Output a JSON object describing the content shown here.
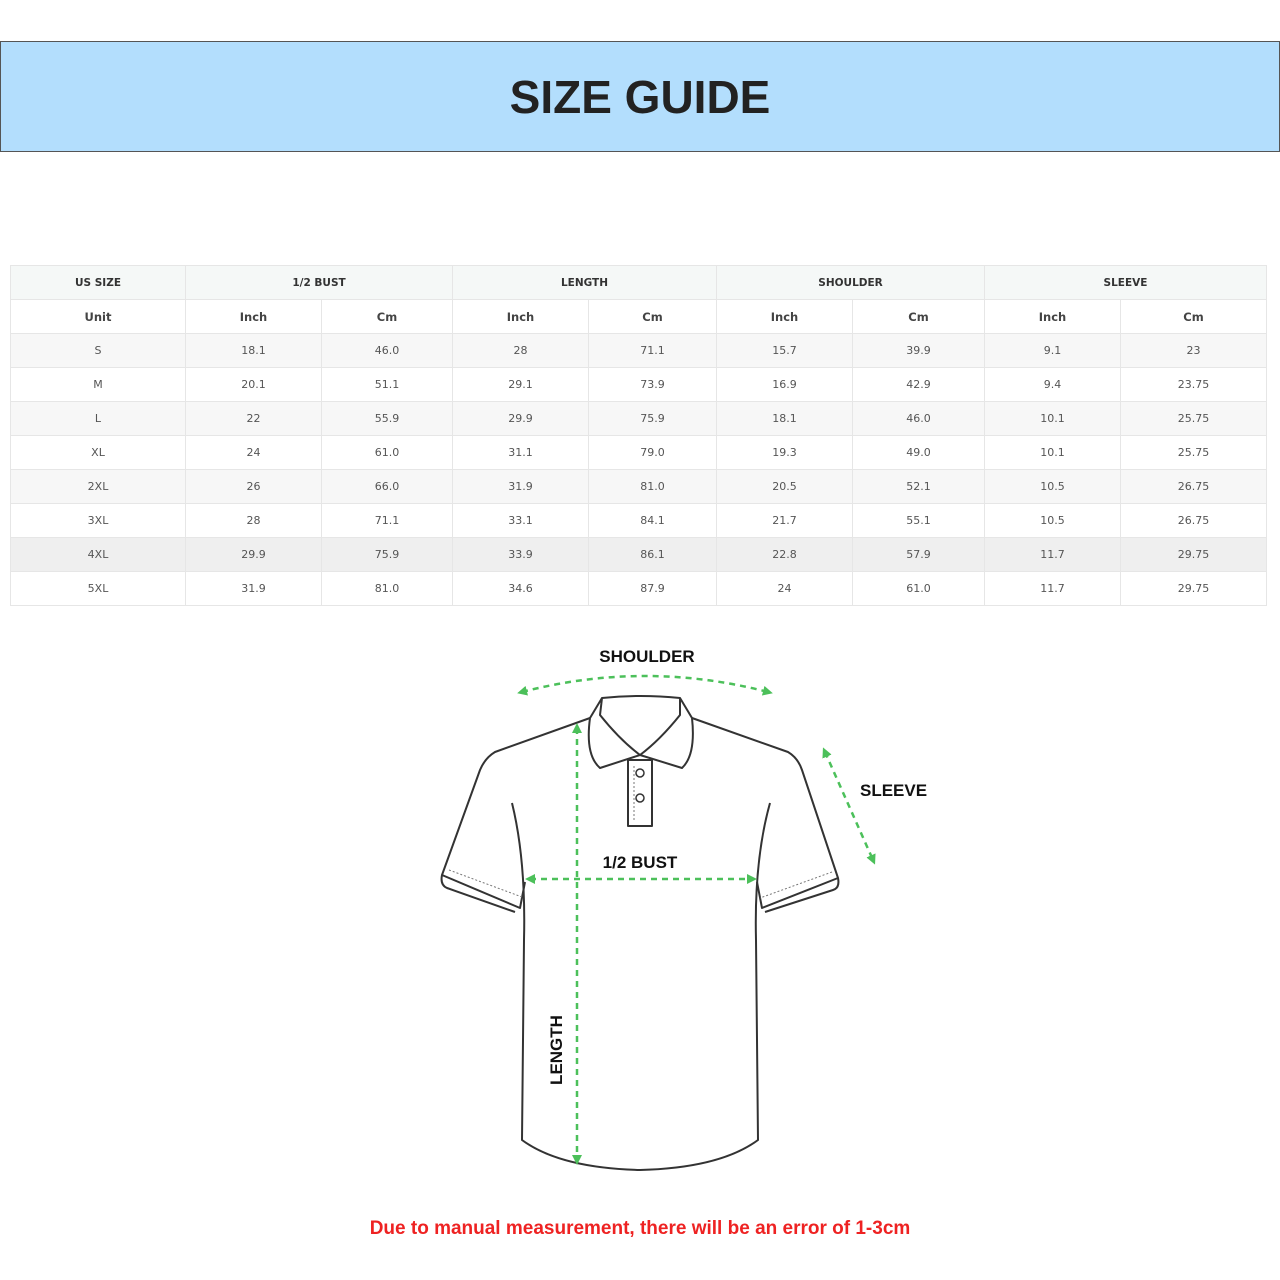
{
  "title": "SIZE GUIDE",
  "table": {
    "groups": [
      "US SIZE",
      "1/2 BUST",
      "LENGTH",
      "SHOULDER",
      "SLEEVE"
    ],
    "units": [
      "Unit",
      "Inch",
      "Cm",
      "Inch",
      "Cm",
      "Inch",
      "Cm",
      "Inch",
      "Cm"
    ],
    "rows": [
      [
        "S",
        "18.1",
        "46.0",
        "28",
        "71.1",
        "15.7",
        "39.9",
        "9.1",
        "23"
      ],
      [
        "M",
        "20.1",
        "51.1",
        "29.1",
        "73.9",
        "16.9",
        "42.9",
        "9.4",
        "23.75"
      ],
      [
        "L",
        "22",
        "55.9",
        "29.9",
        "75.9",
        "18.1",
        "46.0",
        "10.1",
        "25.75"
      ],
      [
        "XL",
        "24",
        "61.0",
        "31.1",
        "79.0",
        "19.3",
        "49.0",
        "10.1",
        "25.75"
      ],
      [
        "2XL",
        "26",
        "66.0",
        "31.9",
        "81.0",
        "20.5",
        "52.1",
        "10.5",
        "26.75"
      ],
      [
        "3XL",
        "28",
        "71.1",
        "33.1",
        "84.1",
        "21.7",
        "55.1",
        "10.5",
        "26.75"
      ],
      [
        "4XL",
        "29.9",
        "75.9",
        "33.9",
        "86.1",
        "22.8",
        "57.9",
        "11.7",
        "29.75"
      ],
      [
        "5XL",
        "31.9",
        "81.0",
        "34.6",
        "87.9",
        "24",
        "61.0",
        "11.7",
        "29.75"
      ]
    ]
  },
  "diagram": {
    "shoulder": "SHOULDER",
    "sleeve": "SLEEVE",
    "bust": "1/2 BUST",
    "length": "LENGTH",
    "arrow_color": "#4cc05a"
  },
  "note": "Due to manual measurement, there will be an error of 1-3cm",
  "colors": {
    "banner": "#b3defd",
    "note": "#ee2222"
  }
}
